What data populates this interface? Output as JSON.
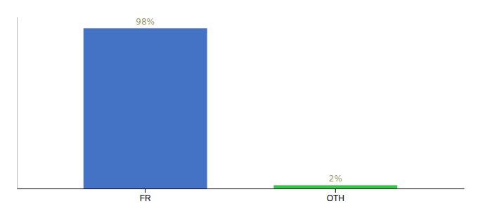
{
  "chart_data": {
    "type": "bar",
    "categories": [
      "FR",
      "OTH"
    ],
    "values": [
      98,
      2
    ],
    "value_labels": [
      "98%",
      "2%"
    ],
    "colors": [
      "#4472c4",
      "#2ecc40"
    ],
    "ylim": [
      0,
      105
    ],
    "data_labels": true,
    "tick_labels": "x",
    "grid": false
  }
}
